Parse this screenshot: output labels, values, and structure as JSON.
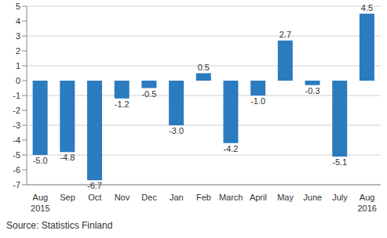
{
  "chart_data": {
    "type": "bar",
    "source": "Source: Statistics Finland",
    "categories": [
      "Aug 2015",
      "Sep",
      "Oct",
      "Nov",
      "Dec",
      "Jan",
      "Feb",
      "March",
      "April",
      "May",
      "June",
      "July",
      "Aug 2016"
    ],
    "values": [
      -5.0,
      -4.8,
      -6.7,
      -1.2,
      -0.5,
      -3.0,
      0.5,
      -4.2,
      -1.0,
      2.7,
      -0.3,
      -5.1,
      4.5
    ],
    "value_labels": [
      "-5.0",
      "-4.8",
      "-6.7",
      "-1.2",
      "-0.5",
      "-3.0",
      "0.5",
      "-4.2",
      "-1.0",
      "2.7",
      "-0.3",
      "-5.1",
      "4.5"
    ],
    "color": "#2b7bbf",
    "ylim": [
      -7,
      5
    ],
    "yticks": [
      -7,
      -6,
      -5,
      -4,
      -3,
      -2,
      -1,
      0,
      1,
      2,
      3,
      4,
      5
    ],
    "grid": true,
    "data_labels": true
  }
}
